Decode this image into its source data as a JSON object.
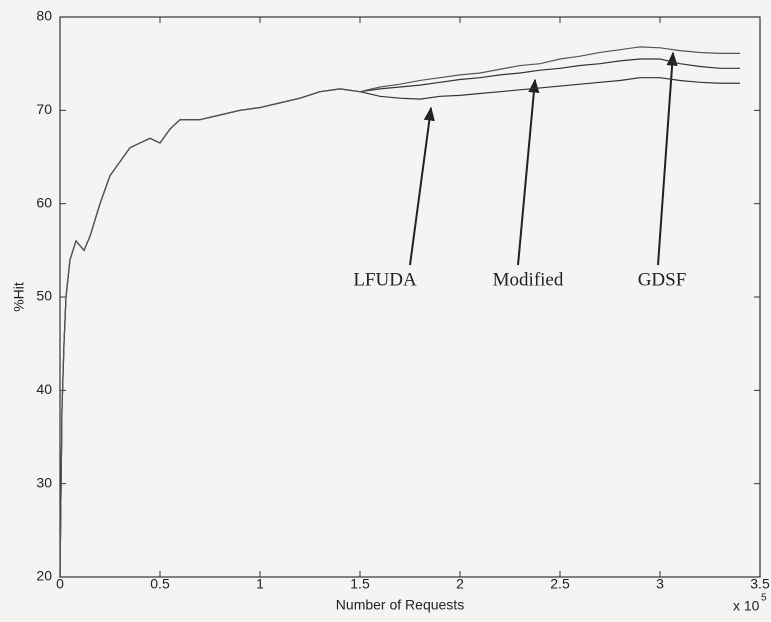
{
  "chart_data": {
    "type": "line",
    "xlabel": "Number of Requests",
    "ylabel": "%Hit",
    "x_multiplier": "x 10",
    "x_multiplier_exponent": "5",
    "x": [
      0,
      0.01,
      0.02,
      0.03,
      0.05,
      0.08,
      0.1,
      0.12,
      0.15,
      0.2,
      0.25,
      0.3,
      0.35,
      0.4,
      0.45,
      0.5,
      0.55,
      0.6,
      0.7,
      0.8,
      0.9,
      1.0,
      1.1,
      1.2,
      1.3,
      1.4,
      1.5,
      1.6,
      1.7,
      1.8,
      1.9,
      2.0,
      2.1,
      2.2,
      2.3,
      2.4,
      2.5,
      2.6,
      2.7,
      2.8,
      2.9,
      3.0,
      3.1,
      3.2,
      3.3,
      3.4
    ],
    "series": [
      {
        "name": "LFUDA",
        "color": "#333333",
        "values": [
          20,
          38,
          45,
          50,
          54,
          56,
          55.5,
          55,
          56.5,
          60,
          63,
          64.5,
          66,
          66.5,
          67,
          66.5,
          68,
          69,
          69,
          69.5,
          70,
          70.3,
          70.8,
          71.3,
          72,
          72.3,
          72,
          71.5,
          71.3,
          71.2,
          71.5,
          71.6,
          71.8,
          72,
          72.2,
          72.4,
          72.6,
          72.8,
          73,
          73.2,
          73.5,
          73.5,
          73.2,
          73,
          72.9,
          72.9
        ]
      },
      {
        "name": "Modified",
        "color": "#333333",
        "values": [
          20,
          38,
          45,
          50,
          54,
          56,
          55.5,
          55,
          56.5,
          60,
          63,
          64.5,
          66,
          66.5,
          67,
          66.5,
          68,
          69,
          69,
          69.5,
          70,
          70.3,
          70.8,
          71.3,
          72,
          72.3,
          72,
          72.3,
          72.5,
          72.7,
          73,
          73.3,
          73.5,
          73.8,
          74,
          74.3,
          74.5,
          74.8,
          75,
          75.3,
          75.5,
          75.5,
          75,
          74.7,
          74.5,
          74.5
        ]
      },
      {
        "name": "GDSF",
        "color": "#555555",
        "values": [
          20,
          38,
          45,
          50,
          54,
          56,
          55.5,
          55,
          56.5,
          60,
          63,
          64.5,
          66,
          66.5,
          67,
          66.5,
          68,
          69,
          69,
          69.5,
          70,
          70.3,
          70.8,
          71.3,
          72,
          72.3,
          72,
          72.5,
          72.8,
          73.2,
          73.5,
          73.8,
          74,
          74.4,
          74.8,
          75,
          75.5,
          75.8,
          76.2,
          76.5,
          76.8,
          76.7,
          76.4,
          76.2,
          76.1,
          76.1
        ]
      }
    ],
    "xlim": [
      0,
      3.5
    ],
    "xticks": [
      0,
      0.5,
      1,
      1.5,
      2,
      2.5,
      3,
      3.5
    ],
    "ylim": [
      20,
      80
    ],
    "yticks": [
      20,
      30,
      40,
      50,
      60,
      70,
      80
    ],
    "grid": false
  }
}
